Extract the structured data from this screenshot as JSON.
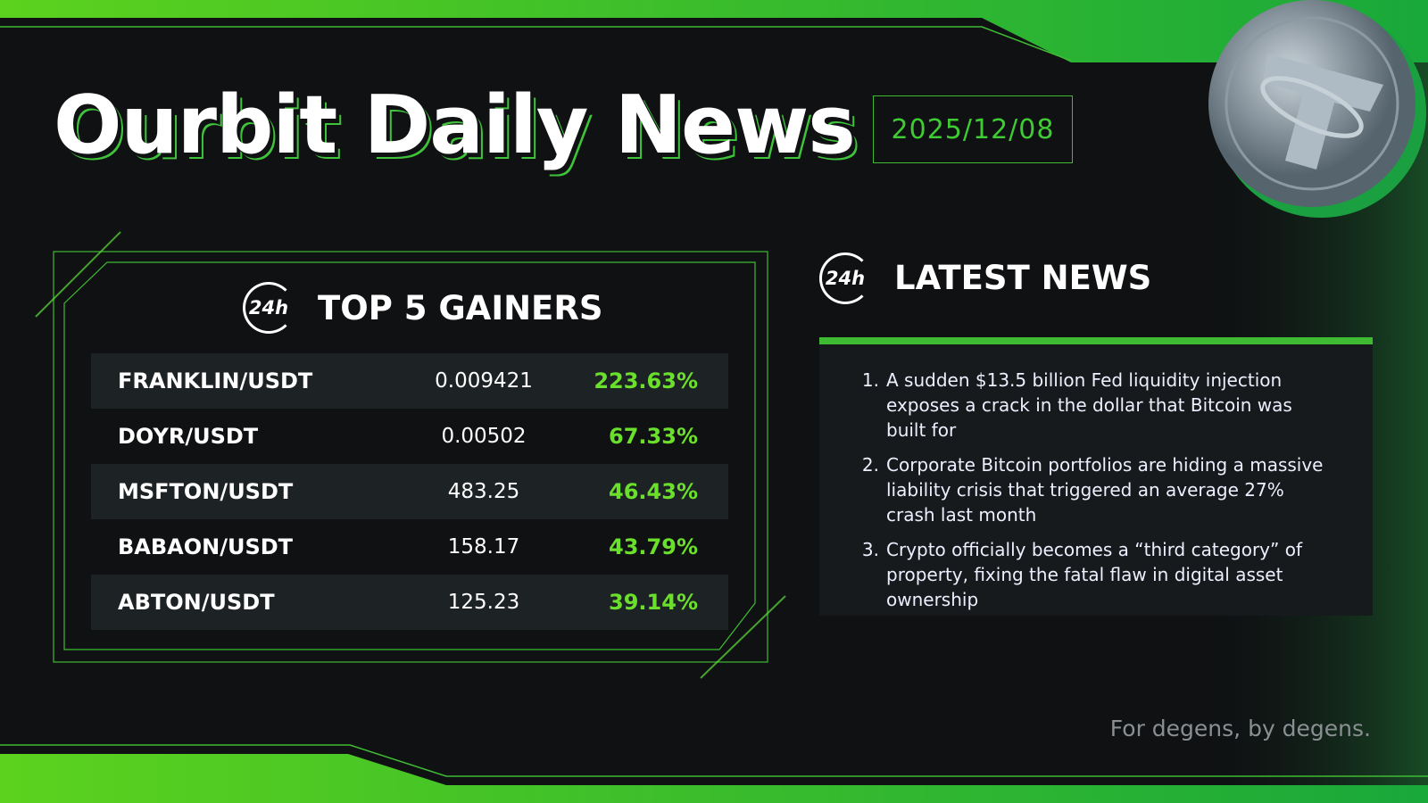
{
  "header": {
    "title": "Ourbit Daily News",
    "date": "2025/12/08"
  },
  "gainers": {
    "icon_label": "24h",
    "title": "TOP 5 GAINERS",
    "rows": [
      [
        "FRANKLIN/USDT",
        "0.009421",
        "223.63%"
      ],
      [
        "DOYR/USDT",
        "0.00502",
        "67.33%"
      ],
      [
        "MSFTON/USDT",
        "483.25",
        "46.43%"
      ],
      [
        "BABAON/USDT",
        "158.17",
        "43.79%"
      ],
      [
        "ABTON/USDT",
        "125.23",
        "39.14%"
      ]
    ]
  },
  "news": {
    "icon_label": "24h",
    "title": "LATEST NEWS",
    "items": [
      {
        "number": "1.",
        "text": "A sudden $13.5 billion Fed liquidity injection exposes a crack in the dollar that Bitcoin was built for"
      },
      {
        "number": "2.",
        "text": "Corporate Bitcoin portfolios are hiding a massive liability crisis that triggered an average 27% crash last month"
      },
      {
        "number": "3.",
        "text": "Crypto officially becomes a “third category” of property, fixing the fatal flaw in digital asset ownership"
      }
    ]
  },
  "footer": {
    "tagline": "For degens, by degens."
  }
}
